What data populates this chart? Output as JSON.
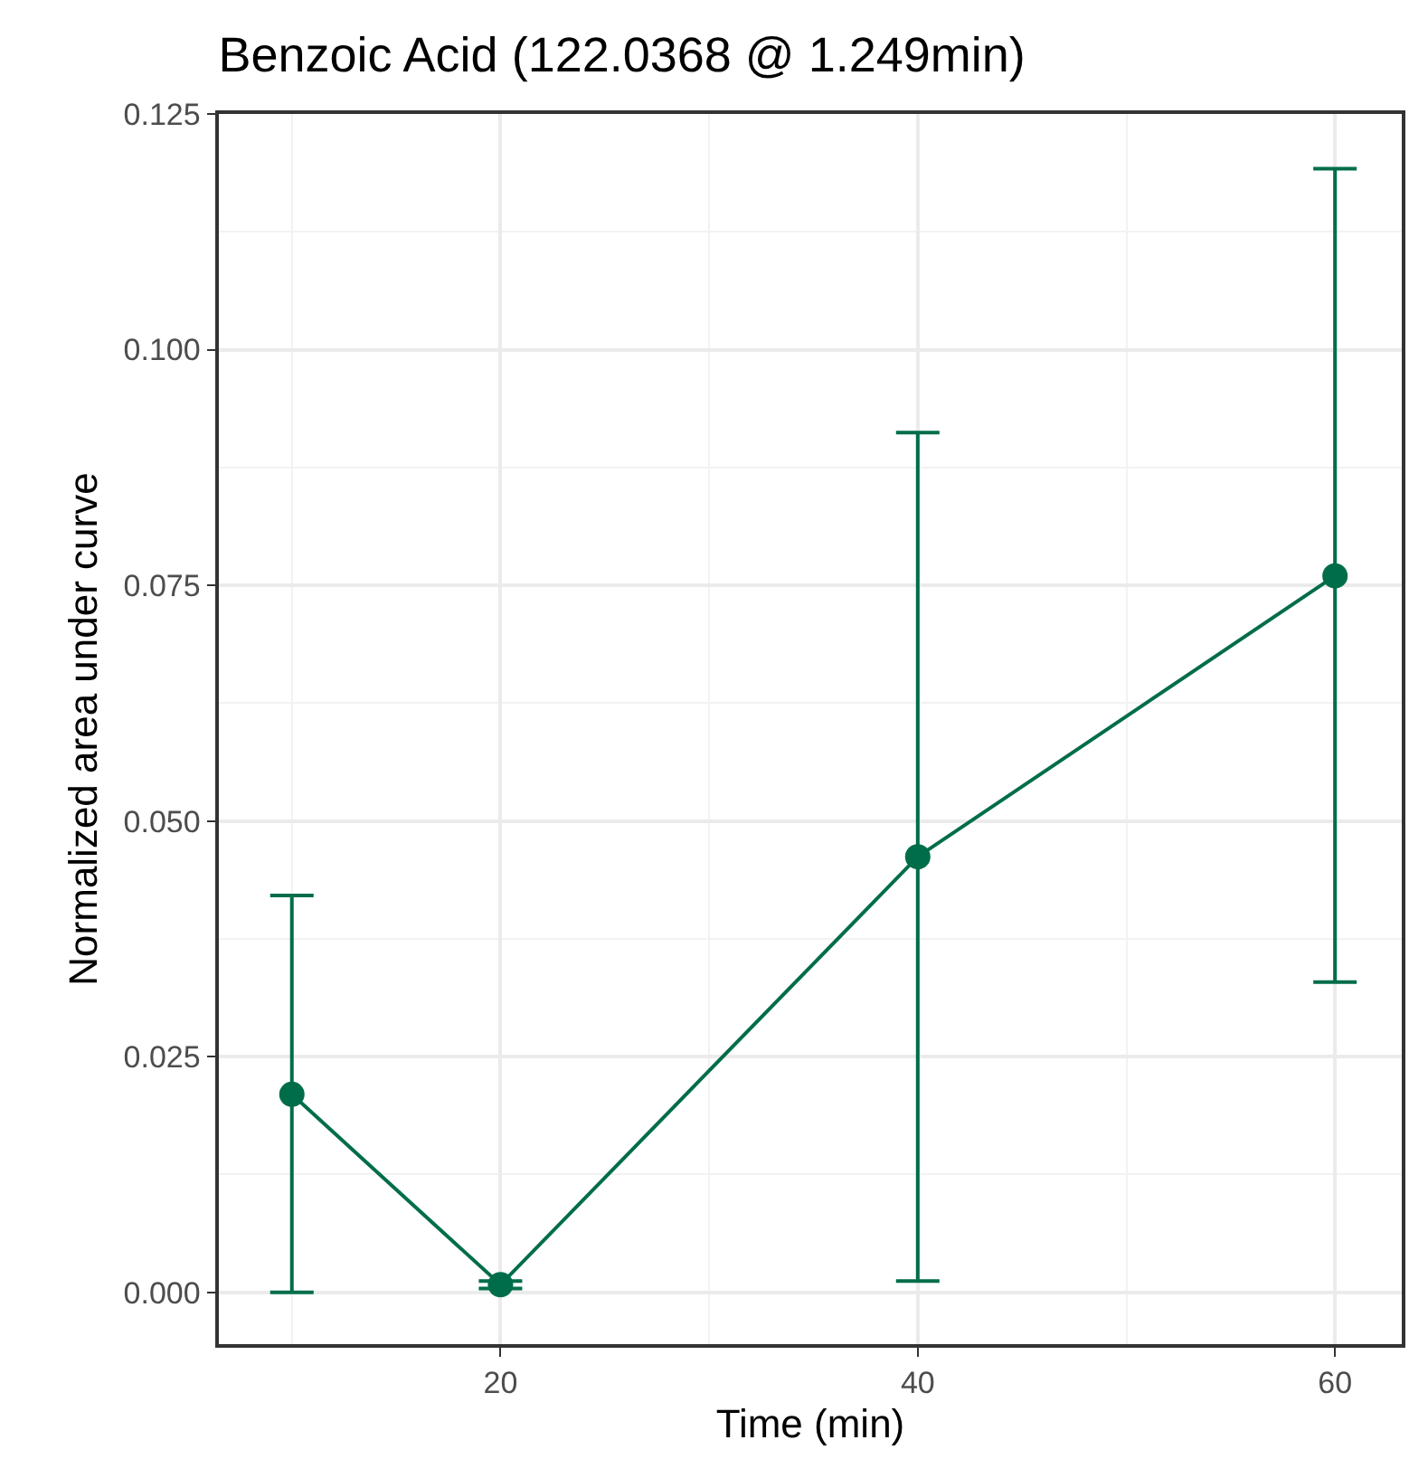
{
  "chart_data": {
    "type": "line",
    "title": "Benzoic Acid (122.0368 @ 1.249min)",
    "xlabel": "Time (min)",
    "ylabel": "Normalized area under curve",
    "x": [
      10,
      20,
      40,
      60
    ],
    "series": [
      {
        "color": "#006d4a",
        "values": [
          0.021,
          0.0008,
          0.0462,
          0.076
        ],
        "errors": [
          [
            0.0,
            0.0421
          ],
          [
            0.0004,
            0.0012
          ],
          [
            0.0012,
            0.0912
          ],
          [
            0.0329,
            0.1192
          ]
        ]
      }
    ],
    "xlim": [
      6.5,
      63.2
    ],
    "xticks": [
      20,
      40,
      60
    ],
    "ylim": [
      -0.0055,
      0.125
    ],
    "yticks": [
      {
        "value": 0,
        "label": "0.000"
      },
      {
        "value": 0.025,
        "label": "0.025"
      },
      {
        "value": 0.05,
        "label": "0.050"
      },
      {
        "value": 0.075,
        "label": "0.075"
      },
      {
        "value": 0.1,
        "label": "0.100"
      },
      {
        "value": 0.125,
        "label": "0.125"
      }
    ],
    "grid": true,
    "marker": "circle",
    "line_style": "solid"
  }
}
